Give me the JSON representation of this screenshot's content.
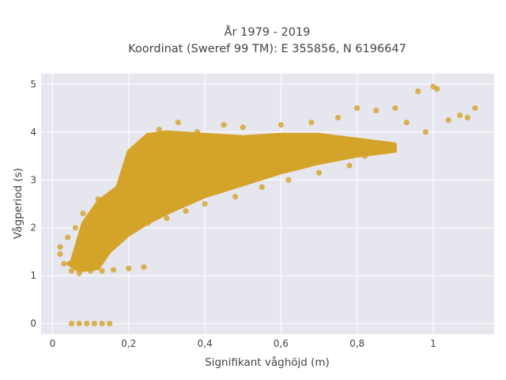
{
  "chart_data": {
    "type": "scatter",
    "title_lines": [
      "År 1979 - 2019",
      "Koordinat (Sweref 99 TM): E 355856, N 6196647"
    ],
    "xlabel": "Signifikant våghöjd (m)",
    "ylabel": "Vågperiod (s)",
    "xlim": [
      -0.03,
      1.16
    ],
    "ylim": [
      -0.22,
      5.22
    ],
    "x_ticks": [
      0,
      0.2,
      0.4,
      0.6,
      0.8,
      1
    ],
    "x_tick_labels": [
      "0",
      "0,2",
      "0,4",
      "0,6",
      "0,8",
      "1"
    ],
    "y_ticks": [
      0,
      1,
      2,
      3,
      4,
      5
    ],
    "y_tick_labels": [
      "0",
      "1",
      "2",
      "3",
      "4",
      "5"
    ],
    "grid": true,
    "colors": {
      "marker": "#d4a32a",
      "plot_bg": "#e6e6ef",
      "grid": "#ffffff",
      "text": "#444444"
    },
    "series": [
      {
        "values": [
          [
            0.05,
            0.0
          ],
          [
            0.07,
            0.0
          ],
          [
            0.09,
            0.0
          ],
          [
            0.11,
            0.0
          ],
          [
            0.13,
            0.0
          ],
          [
            0.15,
            0.0
          ],
          [
            0.02,
            1.45
          ],
          [
            0.02,
            1.6
          ],
          [
            0.03,
            1.25
          ],
          [
            0.04,
            1.8
          ],
          [
            0.05,
            1.1
          ],
          [
            0.06,
            2.0
          ],
          [
            0.07,
            1.05
          ],
          [
            0.08,
            2.3
          ],
          [
            0.1,
            1.1
          ],
          [
            0.12,
            2.6
          ],
          [
            0.13,
            1.1
          ],
          [
            0.15,
            2.7
          ],
          [
            0.16,
            1.12
          ],
          [
            0.18,
            3.0
          ],
          [
            0.2,
            1.15
          ],
          [
            0.22,
            3.7
          ],
          [
            0.24,
            1.18
          ],
          [
            0.25,
            2.1
          ],
          [
            0.26,
            3.9
          ],
          [
            0.28,
            4.05
          ],
          [
            0.3,
            2.2
          ],
          [
            0.33,
            4.2
          ],
          [
            0.35,
            2.35
          ],
          [
            0.38,
            4.0
          ],
          [
            0.4,
            2.5
          ],
          [
            0.45,
            4.15
          ],
          [
            0.48,
            2.65
          ],
          [
            0.5,
            4.1
          ],
          [
            0.55,
            2.85
          ],
          [
            0.6,
            4.15
          ],
          [
            0.62,
            3.0
          ],
          [
            0.68,
            4.2
          ],
          [
            0.7,
            3.15
          ],
          [
            0.75,
            4.3
          ],
          [
            0.78,
            3.3
          ],
          [
            0.8,
            4.5
          ],
          [
            0.82,
            3.5
          ],
          [
            0.85,
            4.45
          ],
          [
            0.88,
            3.6
          ],
          [
            0.9,
            4.5
          ],
          [
            0.93,
            4.2
          ],
          [
            0.96,
            4.85
          ],
          [
            0.98,
            4.0
          ],
          [
            1.0,
            4.95
          ],
          [
            1.01,
            4.9
          ],
          [
            1.04,
            4.25
          ],
          [
            1.07,
            4.35
          ],
          [
            1.09,
            4.3
          ],
          [
            1.11,
            4.5
          ]
        ]
      }
    ]
  }
}
